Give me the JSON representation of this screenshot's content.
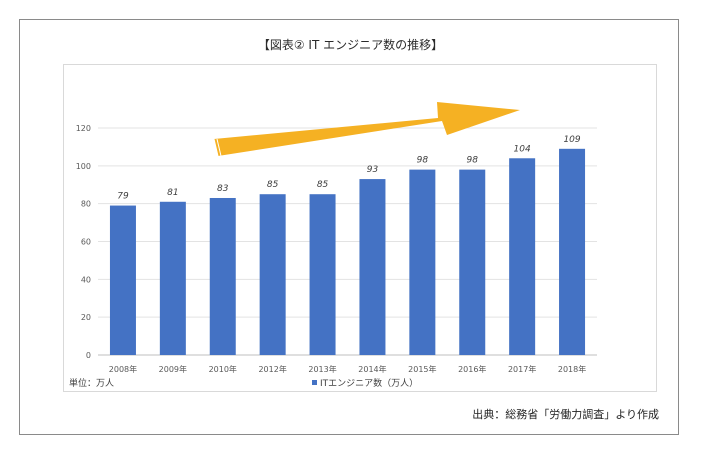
{
  "page": {
    "title": "【図表② IT エンジニア数の推移】",
    "unit_label": "単位：万人",
    "source": "出典：総務省「労働力調査」より作成"
  },
  "chart_data": {
    "type": "bar",
    "title": "【図表② IT エンジニア数の推移】",
    "categories": [
      "2008年",
      "2009年",
      "2010年",
      "2012年",
      "2013年",
      "2014年",
      "2015年",
      "2016年",
      "2017年",
      "2018年"
    ],
    "series": [
      {
        "name": "ITエンジニア数（万人）",
        "values": [
          79,
          81,
          83,
          85,
          85,
          93,
          98,
          98,
          104,
          109
        ],
        "color": "#4472c4"
      }
    ],
    "ylim": [
      0,
      120
    ],
    "yticks": [
      0,
      20,
      40,
      60,
      80,
      100,
      120
    ],
    "xlabel": "",
    "ylabel": "",
    "grid": true,
    "legend_position": "bottom",
    "data_labels": true,
    "trend_arrow_color": "#f5b123"
  }
}
